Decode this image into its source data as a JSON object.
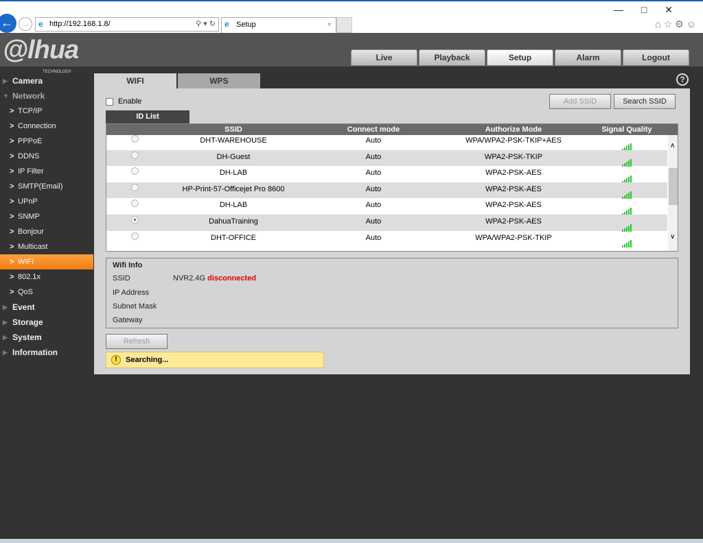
{
  "browser": {
    "url": "http://192.168.1.8/",
    "tab_title": "Setup"
  },
  "brand": {
    "logo": "alhua",
    "logo_sub": "TECHNOLOGY"
  },
  "nav": {
    "tabs": [
      {
        "label": "Live"
      },
      {
        "label": "Playback"
      },
      {
        "label": "Setup",
        "active": true
      },
      {
        "label": "Alarm"
      },
      {
        "label": "Logout"
      }
    ]
  },
  "sidebar": {
    "items": [
      {
        "label": "Camera",
        "level": 0
      },
      {
        "label": "Network",
        "level": 0
      },
      {
        "label": "TCP/IP",
        "level": 1
      },
      {
        "label": "Connection",
        "level": 1
      },
      {
        "label": "PPPoE",
        "level": 1
      },
      {
        "label": "DDNS",
        "level": 1
      },
      {
        "label": "IP Filter",
        "level": 1
      },
      {
        "label": "SMTP(Email)",
        "level": 1
      },
      {
        "label": "UPnP",
        "level": 1
      },
      {
        "label": "SNMP",
        "level": 1
      },
      {
        "label": "Bonjour",
        "level": 1
      },
      {
        "label": "Multicast",
        "level": 1
      },
      {
        "label": "WIFI",
        "level": 1,
        "active": true
      },
      {
        "label": "802.1x",
        "level": 1
      },
      {
        "label": "QoS",
        "level": 1
      },
      {
        "label": "Event",
        "level": 0
      },
      {
        "label": "Storage",
        "level": 0
      },
      {
        "label": "System",
        "level": 0
      },
      {
        "label": "Information",
        "level": 0
      }
    ]
  },
  "page": {
    "tabs": [
      {
        "label": "WIFI"
      },
      {
        "label": "WPS"
      }
    ],
    "enable_label": "Enable",
    "enable_checked": false,
    "add_ssid": "Add SSID",
    "search_ssid": "Search SSID",
    "id_list_tab": "ID List",
    "help": "?"
  },
  "table": {
    "headers": [
      "SSID",
      "Connect mode",
      "Authorize Mode",
      "Signal Quality"
    ],
    "rows": [
      {
        "ssid": "DHT-WAREHOUSE",
        "mode": "Auto",
        "auth": "WPA/WPA2-PSK-TKIP+AES",
        "signal": 4,
        "selected": false
      },
      {
        "ssid": "DH-Guest",
        "mode": "Auto",
        "auth": "WPA2-PSK-TKIP",
        "signal": 4,
        "selected": false
      },
      {
        "ssid": "DH-LAB",
        "mode": "Auto",
        "auth": "WPA2-PSK-AES",
        "signal": 4,
        "selected": false
      },
      {
        "ssid": "HP-Print-57-Officejet Pro 8600",
        "mode": "Auto",
        "auth": "WPA2-PSK-AES",
        "signal": 4,
        "selected": false
      },
      {
        "ssid": "DH-LAB",
        "mode": "Auto",
        "auth": "WPA2-PSK-AES",
        "signal": 4,
        "selected": false
      },
      {
        "ssid": "DahuaTraining",
        "mode": "Auto",
        "auth": "WPA2-PSK-AES",
        "signal": 4,
        "selected": true
      },
      {
        "ssid": "DHT-OFFICE",
        "mode": "Auto",
        "auth": "WPA/WPA2-PSK-TKIP",
        "signal": 4,
        "selected": false
      }
    ]
  },
  "wifi_info": {
    "title": "Wifi Info",
    "ssid_label": "SSID",
    "ssid_value": "NVR2.4G",
    "status": "disconnected",
    "status_color": "#e00000",
    "ip_label": "IP Address",
    "mask_label": "Subnet Mask",
    "gateway_label": "Gateway"
  },
  "refresh_label": "Refresh",
  "status_message": "Searching..."
}
